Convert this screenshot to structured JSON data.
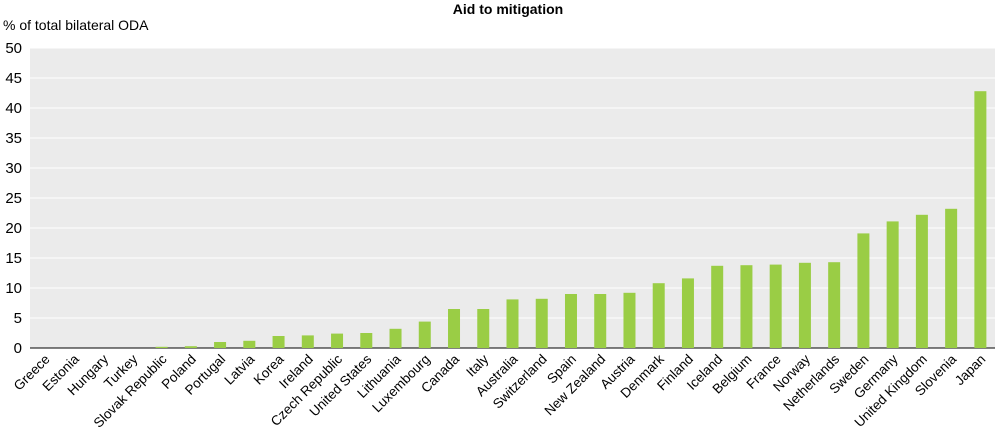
{
  "chart_data": {
    "type": "bar",
    "title": "Aid to mitigation",
    "ylabel": "% of total bilateral ODA",
    "xlabel": "",
    "ylim": [
      0,
      50
    ],
    "yticks": [
      0,
      5,
      10,
      15,
      20,
      25,
      30,
      35,
      40,
      45,
      50
    ],
    "grid": "horizontal",
    "bar_color": "#9ACD45",
    "plot_background": "#EBEBEB",
    "categories": [
      "Greece",
      "Estonia",
      "Hungary",
      "Turkey",
      "Slovak Republic",
      "Poland",
      "Portugal",
      "Latvia",
      "Korea",
      "Ireland",
      "Czech Republic",
      "United States",
      "Lithuania",
      "Luxembourg",
      "Canada",
      "Italy",
      "Australia",
      "Switzerland",
      "Spain",
      "New Zealand",
      "Austria",
      "Denmark",
      "Finland",
      "Iceland",
      "Belgium",
      "France",
      "Norway",
      "Netherlands",
      "Sweden",
      "Germany",
      "United Kingdom",
      "Slovenia",
      "Japan"
    ],
    "values": [
      0,
      0,
      0,
      0,
      0.2,
      0.3,
      1.0,
      1.2,
      2.0,
      2.1,
      2.4,
      2.5,
      3.2,
      4.4,
      6.5,
      6.5,
      8.1,
      8.2,
      9.0,
      9.0,
      9.2,
      10.8,
      11.6,
      13.7,
      13.8,
      13.9,
      14.2,
      14.3,
      19.1,
      21.1,
      22.2,
      23.2,
      42.8
    ]
  }
}
